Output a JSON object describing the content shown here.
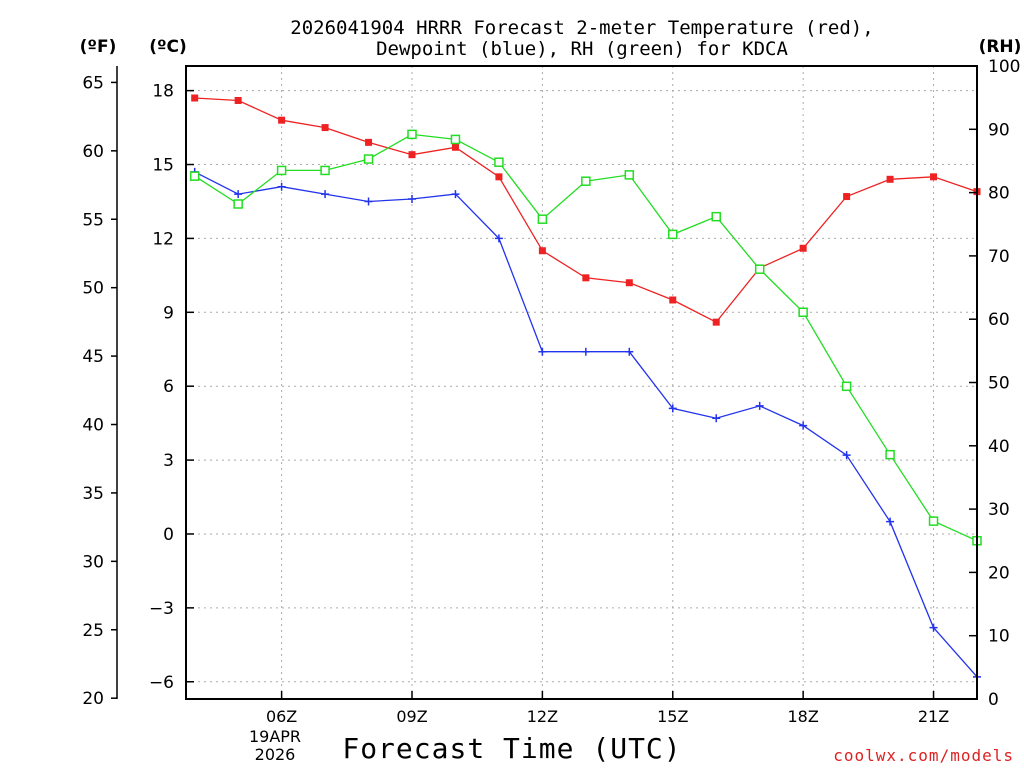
{
  "chart_data": {
    "type": "line",
    "title": "2026041904 HRRR Forecast 2-meter Temperature (red),",
    "subtitle": "Dewpoint (blue), RH (green) for KDCA",
    "xlabel": "Forecast Time (UTC)",
    "ylabel_left_f": "(ºF)",
    "ylabel_left_c": "(ºC)",
    "ylabel_right": "(RH)",
    "credit": "coolwx.com/models",
    "date_label": [
      "19APR",
      "2026"
    ],
    "x_hours": [
      4,
      5,
      6,
      7,
      8,
      9,
      10,
      11,
      12,
      13,
      14,
      15,
      16,
      17,
      18,
      19,
      20,
      21,
      22
    ],
    "xlim": [
      3.8,
      22
    ],
    "x_ticks": [
      {
        "hour": 6,
        "label": "06Z"
      },
      {
        "hour": 9,
        "label": "09Z"
      },
      {
        "hour": 12,
        "label": "12Z"
      },
      {
        "hour": 15,
        "label": "15Z"
      },
      {
        "hour": 18,
        "label": "18Z"
      },
      {
        "hour": 21,
        "label": "21Z"
      }
    ],
    "ylim_c": [
      -6.7,
      19.0
    ],
    "yticks_c": [
      -6,
      -3,
      0,
      3,
      6,
      9,
      12,
      15,
      18
    ],
    "yticks_f": [
      20,
      25,
      30,
      35,
      40,
      45,
      50,
      55,
      60,
      65
    ],
    "ylim_rh": [
      0,
      100
    ],
    "yticks_rh": [
      0,
      10,
      20,
      30,
      40,
      50,
      60,
      70,
      80,
      90,
      100
    ],
    "grid": true,
    "series": [
      {
        "name": "Temperature",
        "axis": "c",
        "color": "#ee2222",
        "marker": "filled-square",
        "values": [
          17.7,
          17.6,
          16.8,
          16.5,
          15.9,
          15.4,
          15.7,
          14.5,
          11.5,
          10.4,
          10.2,
          9.5,
          8.6,
          10.8,
          11.6,
          13.7,
          14.4,
          14.5,
          13.9
        ]
      },
      {
        "name": "Dewpoint",
        "axis": "c",
        "color": "#2233ee",
        "marker": "plus",
        "values": [
          14.7,
          13.8,
          14.1,
          13.8,
          13.5,
          13.6,
          13.8,
          12.0,
          7.4,
          7.4,
          7.4,
          5.1,
          4.7,
          5.2,
          4.4,
          3.2,
          0.5,
          -3.8,
          -5.8
        ]
      },
      {
        "name": "RH",
        "axis": "rh",
        "color": "#22dd22",
        "marker": "open-square",
        "values": [
          82.6,
          78.2,
          83.5,
          83.5,
          85.3,
          89.2,
          88.4,
          84.8,
          75.8,
          81.8,
          82.8,
          73.4,
          76.2,
          67.9,
          61.1,
          49.4,
          38.6,
          28.1,
          25.0
        ]
      }
    ]
  }
}
